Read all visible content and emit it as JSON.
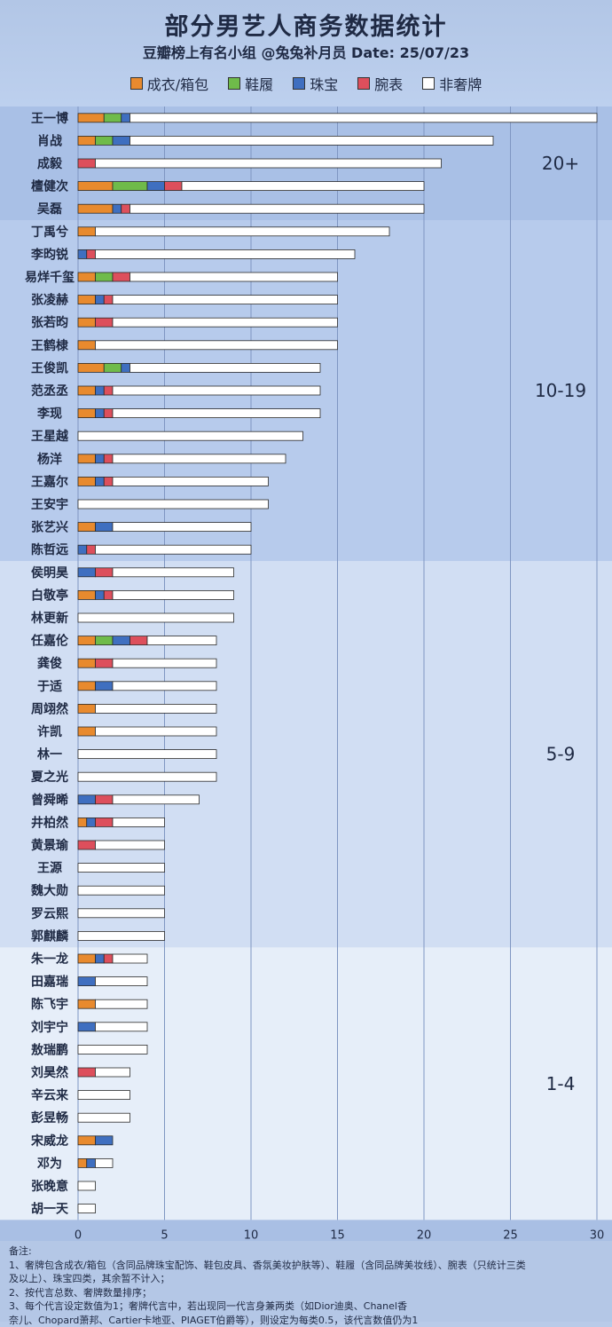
{
  "title": "部分男艺人商务数据统计",
  "subtitle": "豆瓣榜上有名小组 @兔兔补月员  Date: 25/07/23",
  "legend": [
    {
      "label": "成衣/箱包",
      "color": "#e88a2e"
    },
    {
      "label": "鞋履",
      "color": "#6fbb4a"
    },
    {
      "label": "珠宝",
      "color": "#3f6fc0"
    },
    {
      "label": "腕表",
      "color": "#dd4f5c"
    },
    {
      "label": "非奢牌",
      "color": "#ffffff"
    }
  ],
  "notes": {
    "heading": "备注:",
    "lines": [
      "1、奢牌包含成衣/箱包（含同品牌珠宝配饰、鞋包皮具、香氛美妆护肤等）、鞋履（含同品牌美妆线）、腕表（只统计三类",
      "及以上）、珠宝四类，其余暂不计入；",
      "2、按代言总数、奢牌数量排序；",
      "3、每个代言设定数值为1；奢牌代言中，若出现同一代言身兼两类（如Dior迪奥、Chanel香",
      "奈儿、Chopard萧邦、Cartier卡地亚、PIAGET伯爵等），则设定为每类0.5，该代言数值仍为1"
    ]
  },
  "chart_data": {
    "type": "bar",
    "orientation": "horizontal",
    "stacked": true,
    "xlim": [
      0,
      30
    ],
    "xticks": [
      0,
      5,
      10,
      15,
      20,
      25,
      30
    ],
    "grid": true,
    "legend_position": "top",
    "series_names": [
      "成衣/箱包",
      "鞋履",
      "珠宝",
      "腕表",
      "非奢牌"
    ],
    "series_colors": [
      "#e88a2e",
      "#6fbb4a",
      "#3f6fc0",
      "#dd4f5c",
      "#ffffff"
    ],
    "groups": [
      {
        "label": "20+",
        "color": "#a9c0e6"
      },
      {
        "label": "10-19",
        "color": "#b7cbec"
      },
      {
        "label": "5-9",
        "color": "#d1def3"
      },
      {
        "label": "1-4",
        "color": "#e6eef9"
      }
    ],
    "rows": [
      {
        "name": "王一博",
        "group": 0,
        "values": [
          1.5,
          1,
          0.5,
          0,
          27
        ]
      },
      {
        "name": "肖战",
        "group": 0,
        "values": [
          1,
          1,
          1,
          0,
          21
        ]
      },
      {
        "name": "成毅",
        "group": 0,
        "values": [
          0,
          0,
          0,
          1,
          20
        ]
      },
      {
        "name": "檀健次",
        "group": 0,
        "values": [
          2,
          2,
          1,
          1,
          14
        ]
      },
      {
        "name": "吴磊",
        "group": 0,
        "values": [
          2,
          0,
          0.5,
          0.5,
          17
        ]
      },
      {
        "name": "丁禹兮",
        "group": 1,
        "values": [
          1,
          0,
          0,
          0,
          17
        ]
      },
      {
        "name": "李昀锐",
        "group": 1,
        "values": [
          0,
          0,
          0.5,
          0.5,
          15
        ]
      },
      {
        "name": "易烊千玺",
        "group": 1,
        "values": [
          1,
          1,
          0,
          1,
          12
        ]
      },
      {
        "name": "张凌赫",
        "group": 1,
        "values": [
          1,
          0,
          0.5,
          0.5,
          13
        ]
      },
      {
        "name": "张若昀",
        "group": 1,
        "values": [
          1,
          0,
          0,
          1,
          13
        ]
      },
      {
        "name": "王鹤棣",
        "group": 1,
        "values": [
          1,
          0,
          0,
          0,
          14
        ]
      },
      {
        "name": "王俊凯",
        "group": 1,
        "values": [
          1.5,
          1,
          0.5,
          0,
          11
        ]
      },
      {
        "name": "范丞丞",
        "group": 1,
        "values": [
          1,
          0,
          0.5,
          0.5,
          12
        ]
      },
      {
        "name": "李现",
        "group": 1,
        "values": [
          1,
          0,
          0.5,
          0.5,
          12
        ]
      },
      {
        "name": "王星越",
        "group": 1,
        "values": [
          0,
          0,
          0,
          0,
          13
        ]
      },
      {
        "name": "杨洋",
        "group": 1,
        "values": [
          1,
          0,
          0.5,
          0.5,
          10
        ]
      },
      {
        "name": "王嘉尔",
        "group": 1,
        "values": [
          1,
          0,
          0.5,
          0.5,
          9
        ]
      },
      {
        "name": "王安宇",
        "group": 1,
        "values": [
          0,
          0,
          0,
          0,
          11
        ]
      },
      {
        "name": "张艺兴",
        "group": 1,
        "values": [
          1,
          0,
          1,
          0,
          8
        ]
      },
      {
        "name": "陈哲远",
        "group": 1,
        "values": [
          0,
          0,
          0.5,
          0.5,
          9
        ]
      },
      {
        "name": "侯明昊",
        "group": 2,
        "values": [
          0,
          0,
          1,
          1,
          7
        ]
      },
      {
        "name": "白敬亭",
        "group": 2,
        "values": [
          1,
          0,
          0.5,
          0.5,
          7
        ]
      },
      {
        "name": "林更新",
        "group": 2,
        "values": [
          0,
          0,
          0,
          0,
          9
        ]
      },
      {
        "name": "任嘉伦",
        "group": 2,
        "values": [
          1,
          1,
          1,
          1,
          4
        ]
      },
      {
        "name": "龚俊",
        "group": 2,
        "values": [
          1,
          0,
          0,
          1,
          6
        ]
      },
      {
        "name": "于适",
        "group": 2,
        "values": [
          1,
          0,
          1,
          0,
          6
        ]
      },
      {
        "name": "周翊然",
        "group": 2,
        "values": [
          1,
          0,
          0,
          0,
          7
        ]
      },
      {
        "name": "许凯",
        "group": 2,
        "values": [
          1,
          0,
          0,
          0,
          7
        ]
      },
      {
        "name": "林一",
        "group": 2,
        "values": [
          0,
          0,
          0,
          0,
          8
        ]
      },
      {
        "name": "夏之光",
        "group": 2,
        "values": [
          0,
          0,
          0,
          0,
          8
        ]
      },
      {
        "name": "曾舜晞",
        "group": 2,
        "values": [
          0,
          0,
          1,
          1,
          5
        ]
      },
      {
        "name": "井柏然",
        "group": 2,
        "values": [
          0.5,
          0,
          0.5,
          1,
          3
        ]
      },
      {
        "name": "黄景瑜",
        "group": 2,
        "values": [
          0,
          0,
          0,
          1,
          4
        ]
      },
      {
        "name": "王源",
        "group": 2,
        "values": [
          0,
          0,
          0,
          0,
          5
        ]
      },
      {
        "name": "魏大勋",
        "group": 2,
        "values": [
          0,
          0,
          0,
          0,
          5
        ]
      },
      {
        "name": "罗云熙",
        "group": 2,
        "values": [
          0,
          0,
          0,
          0,
          5
        ]
      },
      {
        "name": "郭麒麟",
        "group": 2,
        "values": [
          0,
          0,
          0,
          0,
          5
        ]
      },
      {
        "name": "朱一龙",
        "group": 3,
        "values": [
          1,
          0,
          0.5,
          0.5,
          2
        ]
      },
      {
        "name": "田嘉瑞",
        "group": 3,
        "values": [
          0,
          0,
          1,
          0,
          3
        ]
      },
      {
        "name": "陈飞宇",
        "group": 3,
        "values": [
          1,
          0,
          0,
          0,
          3
        ]
      },
      {
        "name": "刘宇宁",
        "group": 3,
        "values": [
          0,
          0,
          1,
          0,
          3
        ]
      },
      {
        "name": "敖瑞鹏",
        "group": 3,
        "values": [
          0,
          0,
          0,
          0,
          4
        ]
      },
      {
        "name": "刘昊然",
        "group": 3,
        "values": [
          0,
          0,
          0,
          1,
          2
        ]
      },
      {
        "name": "辛云来",
        "group": 3,
        "values": [
          0,
          0,
          0,
          0,
          3
        ]
      },
      {
        "name": "彭昱畅",
        "group": 3,
        "values": [
          0,
          0,
          0,
          0,
          3
        ]
      },
      {
        "name": "宋威龙",
        "group": 3,
        "values": [
          1,
          0,
          1,
          0,
          0
        ]
      },
      {
        "name": "邓为",
        "group": 3,
        "values": [
          0.5,
          0,
          0.5,
          0,
          1
        ]
      },
      {
        "name": "张晚意",
        "group": 3,
        "values": [
          0,
          0,
          0,
          0,
          1
        ]
      },
      {
        "name": "胡一天",
        "group": 3,
        "values": [
          0,
          0,
          0,
          0,
          1
        ]
      }
    ]
  }
}
